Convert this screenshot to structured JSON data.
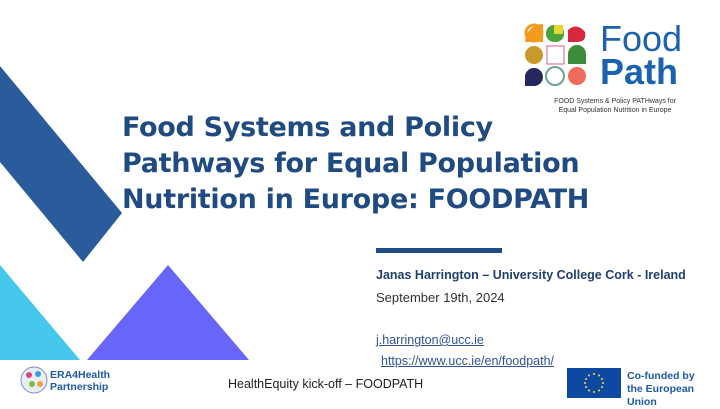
{
  "logo": {
    "word1": "Food",
    "word2": "Path",
    "tagline_line1": "FOOD Systems & Policy PATHways for",
    "tagline_line2": "Equal Population Nutrition in Europe"
  },
  "title": {
    "line1": "Food Systems and Policy",
    "line2": "Pathways for Equal Population",
    "line3": "Nutrition in Europe: FOODPATH"
  },
  "presenter": "Janas Harrington – University College Cork - Ireland",
  "date": "September 19th, 2024",
  "email": "j.harrington@ucc.ie",
  "url": "https://www.ucc.ie/en/foodpath/",
  "footer": {
    "text": "HealthEquity kick-off – FOODPATH",
    "era_line1": "ERA4Health",
    "era_line2": "Partnership",
    "eu_line1": "Co-funded by",
    "eu_line2": "the European Union"
  },
  "colors": {
    "title": "#1f4b82",
    "dark_blue_shape": "#2a5c9c",
    "cyan_shape": "#45c8eb",
    "purple_shape": "#6766f8"
  }
}
